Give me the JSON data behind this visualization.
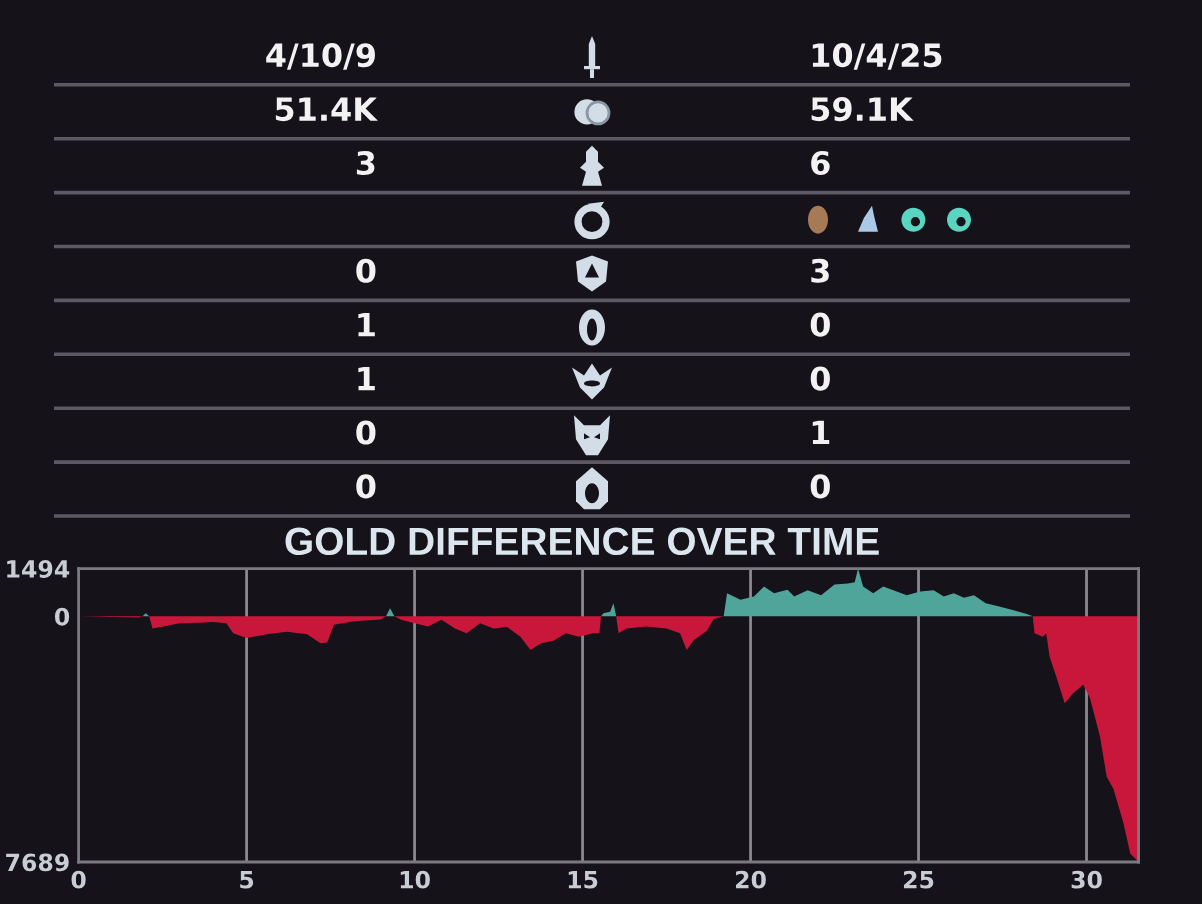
{
  "chart_data": [
    {
      "type": "other",
      "cell_labels": [
        [
          "4/10/9",
          "10/4/25"
        ],
        [
          "51.4K",
          "59.1K"
        ],
        [
          "3",
          "6"
        ],
        [
          null,
          null
        ],
        [
          "0",
          "3"
        ],
        [
          "1",
          "0"
        ],
        [
          "1",
          "0"
        ],
        [
          "0",
          "1"
        ],
        [
          "0",
          "0"
        ]
      ]
    },
    {
      "type": "area",
      "title": "GOLD DIFFERENCE OVER TIME",
      "x": [
        0,
        1.0,
        1.8,
        1.9,
        2.0,
        2.1,
        2.2,
        2.6,
        3.0,
        3.6,
        4.0,
        4.4,
        4.6,
        5.0,
        5.6,
        6.2,
        6.8,
        7.2,
        7.4,
        7.6,
        8.2,
        9.0,
        9.15,
        9.27,
        9.4,
        9.6,
        10.0,
        10.4,
        10.8,
        11.2,
        11.55,
        11.95,
        12.35,
        12.75,
        13.15,
        13.45,
        13.75,
        14.15,
        14.5,
        14.9,
        15.3,
        15.5,
        15.55,
        15.62,
        15.82,
        15.92,
        16.0,
        16.07,
        16.3,
        16.9,
        17.5,
        17.9,
        18.1,
        18.3,
        18.7,
        18.9,
        19.2,
        19.3,
        19.7,
        20.1,
        20.4,
        20.7,
        21.1,
        21.3,
        21.7,
        22.1,
        22.5,
        22.9,
        23.1,
        23.2,
        23.35,
        23.65,
        23.95,
        24.25,
        24.65,
        25.05,
        25.45,
        25.75,
        26.05,
        26.35,
        26.65,
        27.0,
        27.4,
        27.8,
        28.2,
        28.4,
        28.45,
        28.7,
        28.8,
        28.9,
        29.1,
        29.35,
        29.6,
        29.9,
        30.1,
        30.4,
        30.6,
        30.8,
        31.1,
        31.3,
        31.55
      ],
      "series": [
        {
          "color": "#c8173a",
          "values": [
            0,
            -20,
            -40,
            0,
            null,
            0,
            -380,
            -300,
            -220,
            -200,
            -180,
            -220,
            -530,
            -680,
            -560,
            -480,
            -560,
            -840,
            -820,
            -260,
            -150,
            -100,
            0,
            null,
            0,
            -110,
            -220,
            -320,
            -110,
            -380,
            -530,
            -220,
            -380,
            -330,
            -640,
            -1050,
            -850,
            -760,
            -530,
            -640,
            -530,
            -530,
            0,
            null,
            null,
            null,
            0,
            -530,
            -380,
            -320,
            -380,
            -530,
            -1050,
            -760,
            -450,
            -90,
            0,
            null,
            null,
            null,
            null,
            null,
            null,
            null,
            null,
            null,
            null,
            null,
            null,
            null,
            null,
            null,
            null,
            null,
            null,
            null,
            null,
            null,
            null,
            null,
            null,
            null,
            null,
            null,
            null,
            0,
            -530,
            -640,
            -530,
            -1260,
            -1890,
            -2720,
            -2410,
            -2140,
            -2550,
            -3760,
            -5020,
            -5400,
            -6480,
            -7420,
            -7689
          ]
        },
        {
          "color": "#4fa59a",
          "values": [
            null,
            null,
            null,
            0,
            100,
            0,
            null,
            null,
            null,
            null,
            null,
            null,
            null,
            null,
            null,
            null,
            null,
            null,
            null,
            null,
            null,
            null,
            0,
            250,
            0,
            null,
            null,
            null,
            null,
            null,
            null,
            null,
            null,
            null,
            null,
            null,
            null,
            null,
            null,
            null,
            null,
            null,
            0,
            100,
            140,
            410,
            0,
            null,
            null,
            null,
            null,
            null,
            null,
            null,
            null,
            null,
            0,
            720,
            520,
            620,
            930,
            720,
            830,
            620,
            820,
            660,
            1000,
            1030,
            1070,
            1494,
            930,
            720,
            930,
            820,
            660,
            780,
            820,
            620,
            720,
            580,
            660,
            410,
            310,
            200,
            80,
            0,
            null,
            null,
            null,
            null,
            null,
            null,
            null,
            null,
            null,
            null,
            null,
            null,
            null,
            null,
            null
          ]
        }
      ],
      "xlim": [
        0,
        31.55
      ],
      "ylim": [
        -7689,
        1494
      ],
      "xticks": [
        0,
        5,
        10,
        15,
        20,
        25,
        30
      ],
      "yticks": [
        {
          "value": -7689,
          "label": "7689"
        },
        0,
        1494
      ],
      "grid": "x"
    }
  ]
}
